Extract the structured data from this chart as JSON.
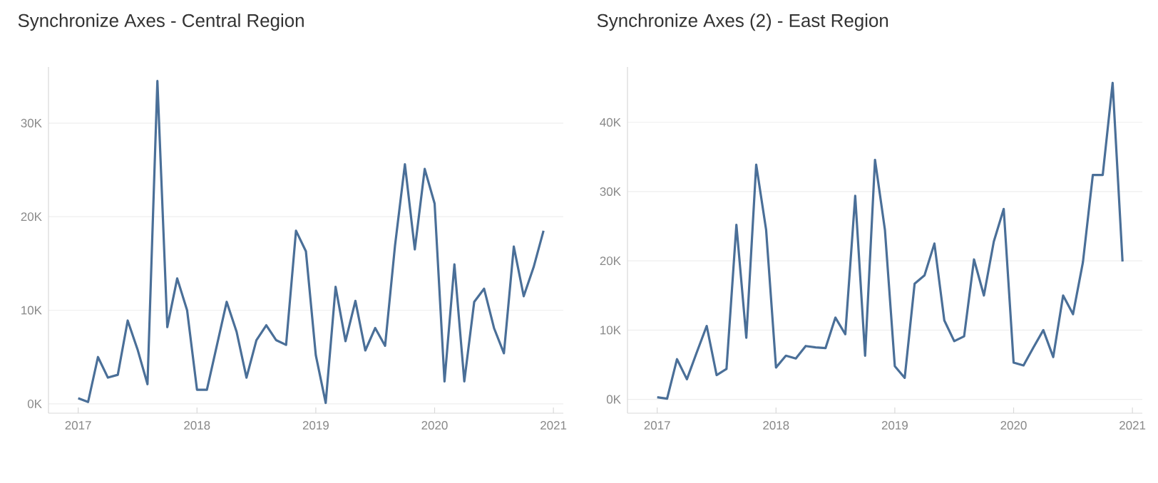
{
  "chart_data": [
    {
      "type": "line",
      "title": "Synchronize Axes - Central Region",
      "x": [
        "2017-01",
        "2017-02",
        "2017-03",
        "2017-04",
        "2017-05",
        "2017-06",
        "2017-07",
        "2017-08",
        "2017-09",
        "2017-10",
        "2017-11",
        "2017-12",
        "2018-01",
        "2018-02",
        "2018-03",
        "2018-04",
        "2018-05",
        "2018-06",
        "2018-07",
        "2018-08",
        "2018-09",
        "2018-10",
        "2018-11",
        "2018-12",
        "2019-01",
        "2019-02",
        "2019-03",
        "2019-04",
        "2019-05",
        "2019-06",
        "2019-07",
        "2019-08",
        "2019-09",
        "2019-10",
        "2019-11",
        "2019-12",
        "2020-01",
        "2020-02",
        "2020-03",
        "2020-04",
        "2020-05",
        "2020-06",
        "2020-07",
        "2020-08",
        "2020-09",
        "2020-10",
        "2020-11",
        "2020-12"
      ],
      "series": [
        {
          "color": "#4a6f98",
          "values": [
            600,
            200,
            5000,
            2800,
            3100,
            8900,
            5800,
            2100,
            34500,
            8200,
            13400,
            10000,
            1500,
            1500,
            6200,
            10900,
            7700,
            2800,
            6800,
            8400,
            6800,
            6300,
            18500,
            16300,
            5200,
            100,
            12500,
            6700,
            11000,
            5700,
            8100,
            6200,
            16900,
            25600,
            16500,
            25100,
            21400,
            2400,
            14900,
            2400,
            10900,
            12300,
            8100,
            5400,
            16800,
            11500,
            14600,
            18500
          ]
        }
      ],
      "xlim": [
        "2016-10",
        "2021-02"
      ],
      "xticks": [
        "2017",
        "2018",
        "2019",
        "2020",
        "2021"
      ],
      "ylim": [
        -1000,
        36000
      ],
      "yticks": [
        {
          "value": 0,
          "label": "0K"
        },
        {
          "value": 10000,
          "label": "10K"
        },
        {
          "value": 20000,
          "label": "20K"
        },
        {
          "value": 30000,
          "label": "30K"
        }
      ],
      "grid": "y"
    },
    {
      "type": "line",
      "title": "Synchronize Axes (2) - East Region",
      "x": [
        "2017-01",
        "2017-02",
        "2017-03",
        "2017-04",
        "2017-05",
        "2017-06",
        "2017-07",
        "2017-08",
        "2017-09",
        "2017-10",
        "2017-11",
        "2017-12",
        "2018-01",
        "2018-02",
        "2018-03",
        "2018-04",
        "2018-05",
        "2018-06",
        "2018-07",
        "2018-08",
        "2018-09",
        "2018-10",
        "2018-11",
        "2018-12",
        "2019-01",
        "2019-02",
        "2019-03",
        "2019-04",
        "2019-05",
        "2019-06",
        "2019-07",
        "2019-08",
        "2019-09",
        "2019-10",
        "2019-11",
        "2019-12",
        "2020-01",
        "2020-02",
        "2020-03",
        "2020-04",
        "2020-05",
        "2020-06",
        "2020-07",
        "2020-08",
        "2020-09",
        "2020-10",
        "2020-11",
        "2020-12"
      ],
      "series": [
        {
          "color": "#4a6f98",
          "values": [
            300,
            100,
            5800,
            2900,
            6800,
            10600,
            3500,
            4400,
            25200,
            8900,
            33900,
            24500,
            4600,
            6300,
            5900,
            7700,
            7500,
            7400,
            11800,
            9400,
            29400,
            6300,
            34600,
            24500,
            4800,
            3100,
            16700,
            17900,
            22500,
            11400,
            8400,
            9100,
            20200,
            15000,
            22800,
            27500,
            5300,
            4900,
            7500,
            10000,
            6100,
            15000,
            12300,
            19800,
            32400,
            32400,
            45700,
            19900
          ]
        }
      ],
      "xlim": [
        "2016-10",
        "2021-02"
      ],
      "xticks": [
        "2017",
        "2018",
        "2019",
        "2020",
        "2021"
      ],
      "ylim": [
        -2000,
        48000
      ],
      "yticks": [
        {
          "value": 0,
          "label": "0K"
        },
        {
          "value": 10000,
          "label": "10K"
        },
        {
          "value": 20000,
          "label": "20K"
        },
        {
          "value": 30000,
          "label": "30K"
        },
        {
          "value": 40000,
          "label": "40K"
        }
      ],
      "grid": "y"
    }
  ]
}
